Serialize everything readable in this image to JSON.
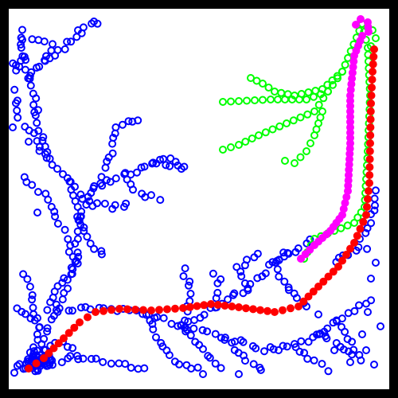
{
  "colors": {
    "border": "#000000",
    "background": "#ffffff",
    "tree_markers": "#0000ff",
    "goal_branches": "#00ff00",
    "path_primary": "#ff0000",
    "path_secondary": "#ff00ff"
  },
  "markers": {
    "tree": "hollow-circle",
    "goal_branches": "hollow-circle",
    "path_primary": "filled-circle",
    "path_secondary": "filled-circle"
  }
}
